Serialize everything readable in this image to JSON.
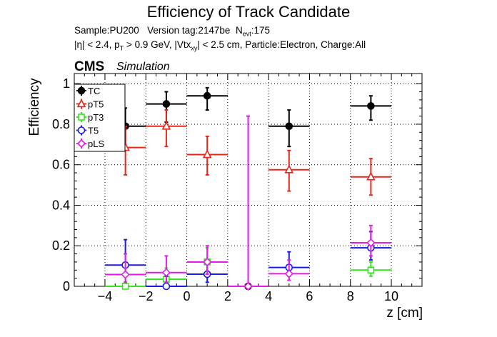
{
  "chart_data": {
    "type": "scatter",
    "title": "Efficiency of Track Candidate",
    "subtitle_line1": {
      "sample": "Sample:PU200",
      "version": "Version tag:2147be",
      "nevt_prefix": "N",
      "nevt_sub": "evt",
      "nevt_value": ":175"
    },
    "subtitle_line2": {
      "eta": "|η| < 2.4, p",
      "pt_sub": "T",
      "pt_rest": " > 0.9 GeV, |Vtx",
      "vtx_sub": "xy",
      "rest": "| < 2.5 cm, Particle:Electron, Charge:All"
    },
    "cms_label": "CMS",
    "simulation_label": "Simulation",
    "xlabel": "z [cm]",
    "ylabel": "Efficiency",
    "xlim": [
      -5.5,
      11.5
    ],
    "ylim": [
      0,
      1.05
    ],
    "x_ticks": [
      "−4",
      "−2",
      "0",
      "2",
      "4",
      "6",
      "8",
      "10"
    ],
    "x_tick_values": [
      -4,
      -2,
      0,
      2,
      4,
      6,
      8,
      10
    ],
    "y_ticks": [
      "0",
      "0.2",
      "0.4",
      "0.6",
      "0.8",
      "1"
    ],
    "y_tick_values": [
      0,
      0.2,
      0.4,
      0.6,
      0.8,
      1.0
    ],
    "grid": true,
    "legend_position": "top-left",
    "series": [
      {
        "name": "TC",
        "color": "#000000",
        "marker": "filled-circle",
        "points": [
          {
            "x": -3,
            "xerr": 1,
            "y": 0.79,
            "ylo": 0.69,
            "yhi": 0.88
          },
          {
            "x": -1,
            "xerr": 1,
            "y": 0.9,
            "ylo": 0.81,
            "yhi": 0.96
          },
          {
            "x": 1,
            "xerr": 1,
            "y": 0.94,
            "ylo": 0.87,
            "yhi": 0.98
          },
          {
            "x": 3,
            "xerr": 1,
            "y": 0.0,
            "ylo": 0.0,
            "yhi": 0.0
          },
          {
            "x": 5,
            "xerr": 1,
            "y": 0.79,
            "ylo": 0.69,
            "yhi": 0.87
          },
          {
            "x": 9,
            "xerr": 1,
            "y": 0.89,
            "ylo": 0.82,
            "yhi": 0.94
          }
        ]
      },
      {
        "name": "pT5",
        "color": "#e8261a",
        "marker": "open-triangle",
        "points": [
          {
            "x": -3,
            "xerr": 1,
            "y": 0.685,
            "ylo": 0.55,
            "yhi": 0.79
          },
          {
            "x": -1,
            "xerr": 1,
            "y": 0.79,
            "ylo": 0.69,
            "yhi": 0.87
          },
          {
            "x": 1,
            "xerr": 1,
            "y": 0.65,
            "ylo": 0.55,
            "yhi": 0.74
          },
          {
            "x": 5,
            "xerr": 1,
            "y": 0.575,
            "ylo": 0.47,
            "yhi": 0.67
          },
          {
            "x": 9,
            "xerr": 1,
            "y": 0.54,
            "ylo": 0.45,
            "yhi": 0.63
          }
        ]
      },
      {
        "name": "pT3",
        "color": "#33e61a",
        "marker": "open-square",
        "points": [
          {
            "x": -3,
            "xerr": 1,
            "y": 0.0,
            "ylo": 0.0,
            "yhi": 0.05
          },
          {
            "x": -1,
            "xerr": 1,
            "y": 0.035,
            "ylo": 0.01,
            "yhi": 0.09
          },
          {
            "x": 1,
            "xerr": 1,
            "y": 0.12,
            "ylo": 0.07,
            "yhi": 0.19
          },
          {
            "x": 9,
            "xerr": 1,
            "y": 0.08,
            "ylo": 0.05,
            "yhi": 0.12
          }
        ]
      },
      {
        "name": "T5",
        "color": "#1a1ae6",
        "marker": "open-circle",
        "points": [
          {
            "x": -3,
            "xerr": 1,
            "y": 0.105,
            "ylo": 0.05,
            "yhi": 0.23
          },
          {
            "x": -1,
            "xerr": 1,
            "y": 0.0,
            "ylo": 0.0,
            "yhi": 0.05
          },
          {
            "x": 1,
            "xerr": 1,
            "y": 0.06,
            "ylo": 0.02,
            "yhi": 0.13
          },
          {
            "x": 5,
            "xerr": 1,
            "y": 0.093,
            "ylo": 0.05,
            "yhi": 0.17
          },
          {
            "x": 9,
            "xerr": 1,
            "y": 0.19,
            "ylo": 0.13,
            "yhi": 0.27
          }
        ]
      },
      {
        "name": "pLS",
        "color": "#e61ae6",
        "marker": "open-diamond",
        "points": [
          {
            "x": -3,
            "xerr": 1,
            "y": 0.058,
            "ylo": 0.02,
            "yhi": 0.16
          },
          {
            "x": -1,
            "xerr": 1,
            "y": 0.068,
            "ylo": 0.02,
            "yhi": 0.15
          },
          {
            "x": 1,
            "xerr": 1,
            "y": 0.12,
            "ylo": 0.06,
            "yhi": 0.2
          },
          {
            "x": 3,
            "xerr": 1,
            "y": 0.0,
            "ylo": 0.0,
            "yhi": 0.84
          },
          {
            "x": 5,
            "xerr": 1,
            "y": 0.062,
            "ylo": 0.03,
            "yhi": 0.13
          },
          {
            "x": 9,
            "xerr": 1,
            "y": 0.215,
            "ylo": 0.15,
            "yhi": 0.3
          }
        ]
      }
    ]
  }
}
